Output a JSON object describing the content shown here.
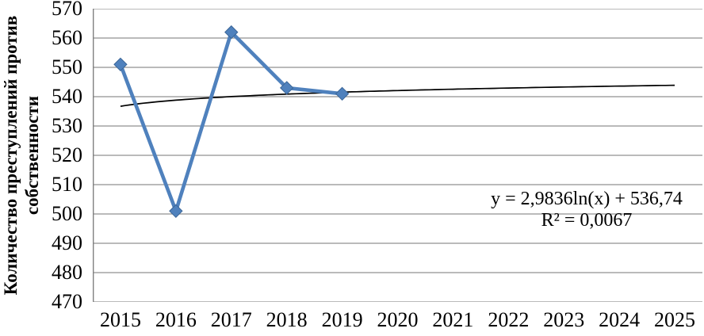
{
  "chart_data": {
    "type": "line",
    "title": "",
    "ylabel_lines": [
      "Количество преступлений против",
      "собственности"
    ],
    "xlabel": "",
    "categories": [
      "2015",
      "2016",
      "2017",
      "2018",
      "2019",
      "2020",
      "2021",
      "2022",
      "2023",
      "2024",
      "2025"
    ],
    "yticks": [
      570,
      560,
      550,
      540,
      530,
      520,
      510,
      500,
      490,
      480,
      470
    ],
    "ylim": [
      470,
      570
    ],
    "series": [
      {
        "name": "Количество преступлений против собственности",
        "values": [
          551,
          501,
          562,
          543,
          541,
          null,
          null,
          null,
          null,
          null,
          null
        ],
        "marker": "diamond"
      }
    ],
    "trendline": {
      "type": "logarithmic",
      "a": 2.9836,
      "b": 536.74,
      "equation": "y = 2,9836ln(x) + 536,74",
      "r_squared": "R² = 0,0067"
    },
    "grid": "horizontal",
    "legend": "none",
    "colors": {
      "series": "#4F81BD",
      "marker_border": "#3A6597",
      "trendline": "#000000",
      "gridline": "#909090",
      "axis": "#808080",
      "text": "#000000",
      "background": "#ffffff"
    }
  }
}
